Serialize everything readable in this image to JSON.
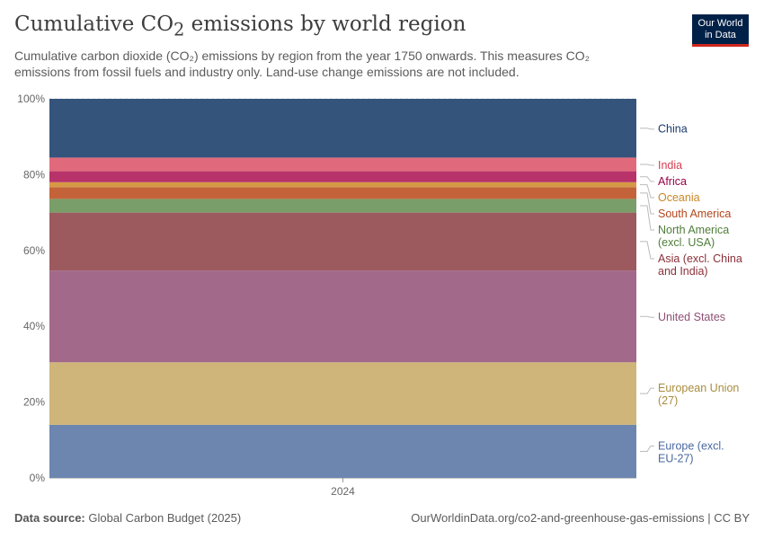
{
  "header": {
    "title_prefix": "Cumulative CO",
    "title_sub": "2",
    "title_suffix": " emissions by world region",
    "subtitle": "Cumulative carbon dioxide (CO₂) emissions by region from the year 1750 onwards. This measures CO₂ emissions from fossil fuels and industry only. Land-use change emissions are not included.",
    "logo_line1": "Our World",
    "logo_line2": "in Data"
  },
  "footer": {
    "source_label": "Data source:",
    "source_value": "Global Carbon Budget (2025)",
    "url": "OurWorldinData.org/co2-and-greenhouse-gas-emissions | CC BY"
  },
  "chart_data": {
    "type": "bar",
    "stacked": true,
    "normalized": true,
    "categories": [
      "2024"
    ],
    "ylim": [
      0,
      100
    ],
    "yticks": [
      0,
      20,
      40,
      60,
      80,
      100
    ],
    "ytick_labels": [
      "0%",
      "20%",
      "40%",
      "60%",
      "80%",
      "100%"
    ],
    "legend_position": "right",
    "series": [
      {
        "name": "Europe (excl. EU-27)",
        "label_lines": [
          "Europe (excl.",
          "EU-27)"
        ],
        "values": [
          14
        ],
        "color": "#6d86b0",
        "label_color": "#4a68a1"
      },
      {
        "name": "European Union (27)",
        "label_lines": [
          "European Union",
          "(27)"
        ],
        "values": [
          16.5
        ],
        "color": "#cfb57a",
        "label_color": "#a88c3e"
      },
      {
        "name": "United States",
        "label_lines": [
          "United States"
        ],
        "values": [
          24.2
        ],
        "color": "#a2698a",
        "label_color": "#8f4f74"
      },
      {
        "name": "Asia (excl. China and India)",
        "label_lines": [
          "Asia (excl. China",
          "and India)"
        ],
        "values": [
          15.3
        ],
        "color": "#9c5a5e",
        "label_color": "#8a3038"
      },
      {
        "name": "North America (excl. USA)",
        "label_lines": [
          "North America",
          "(excl. USA)"
        ],
        "values": [
          3.6
        ],
        "color": "#7a9e6a",
        "label_color": "#4f7d3a"
      },
      {
        "name": "South America",
        "label_lines": [
          "South America"
        ],
        "values": [
          3.1
        ],
        "color": "#c4633a",
        "label_color": "#b3461a"
      },
      {
        "name": "Oceania",
        "label_lines": [
          "Oceania"
        ],
        "values": [
          1.3
        ],
        "color": "#d69a45",
        "label_color": "#c9872a"
      },
      {
        "name": "Africa",
        "label_lines": [
          "Africa"
        ],
        "values": [
          2.9
        ],
        "color": "#b8336a",
        "label_color": "#970046"
      },
      {
        "name": "India",
        "label_lines": [
          "India"
        ],
        "values": [
          3.6
        ],
        "color": "#e06a7b",
        "label_color": "#d73c50"
      },
      {
        "name": "China",
        "label_lines": [
          "China"
        ],
        "values": [
          15.5
        ],
        "color": "#34547c",
        "label_color": "#1a3a6b"
      }
    ]
  }
}
